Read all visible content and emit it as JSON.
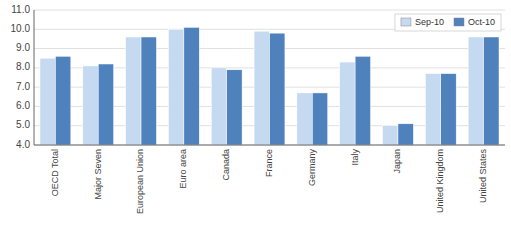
{
  "chart_data": {
    "type": "bar",
    "categories": [
      "OECD Total",
      "Major Seven",
      "European Union",
      "Euro area",
      "Canada",
      "France",
      "Germany",
      "Italy",
      "Japan",
      "United Kingdom",
      "United States"
    ],
    "series": [
      {
        "name": "Sep-10",
        "color": "#c5d9f1",
        "values": [
          8.5,
          8.1,
          9.6,
          10.0,
          8.0,
          9.9,
          6.7,
          8.3,
          5.0,
          7.7,
          9.6
        ]
      },
      {
        "name": "Oct-10",
        "color": "#4f81bd",
        "values": [
          8.6,
          8.2,
          9.6,
          10.1,
          7.9,
          9.8,
          6.7,
          8.6,
          5.1,
          7.7,
          9.6
        ]
      }
    ],
    "ylim": [
      4.0,
      11.0
    ],
    "yticks": [
      {
        "value": 4.0,
        "label": "4.0"
      },
      {
        "value": 5.0,
        "label": "5.0"
      },
      {
        "value": 6.0,
        "label": "6.0"
      },
      {
        "value": 7.0,
        "label": "7.0"
      },
      {
        "value": 8.0,
        "label": "8.0"
      },
      {
        "value": 9.0,
        "label": "9.0"
      },
      {
        "value": 10.0,
        "label": "10.0"
      },
      {
        "value": 11.0,
        "label": "11.0"
      }
    ],
    "grid": true,
    "legend": "upper right"
  }
}
